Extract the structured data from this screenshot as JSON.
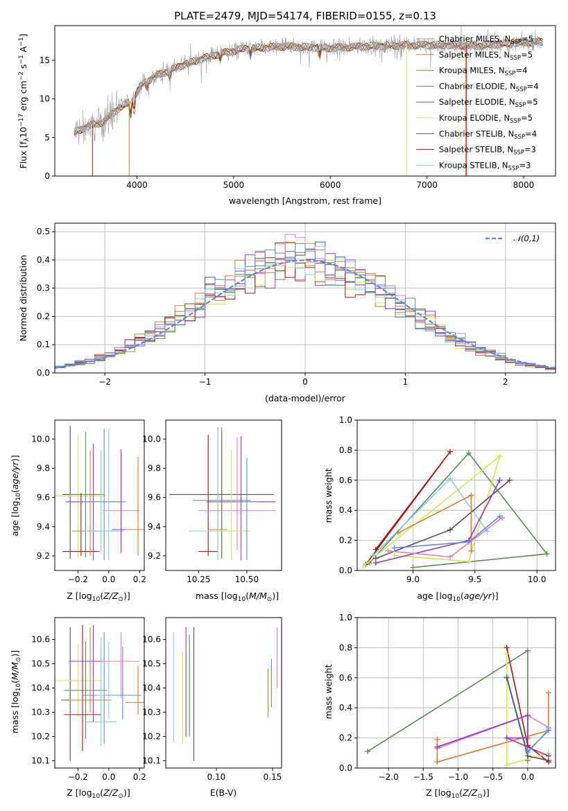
{
  "palette": [
    "#a0a0a0",
    "#e07b25",
    "#b8860b",
    "#5a8a5a",
    "#9932cc",
    "#d6e84a",
    "#505050",
    "#b01010",
    "#80d0e0",
    "#7b8cde",
    "#e080c0"
  ],
  "chart_data": [
    {
      "id": "spectrum",
      "type": "line",
      "title": "PLATE=2479, MJD=54174, FIBERID=0155, z=0.13",
      "xlabel": "wavelength [Angstrom, rest frame]",
      "ylabel": "Flux [f_λ10^-17 erg cm^-2 s^-1 A^-1]",
      "xlim": [
        3150,
        8330
      ],
      "ylim": [
        0,
        19.5
      ],
      "xticks": [
        4000,
        5000,
        6000,
        7000,
        8000
      ],
      "yticks": [
        0,
        5,
        10,
        15
      ],
      "grid": false,
      "legend_position": "top-right",
      "continuum": [
        [
          3350,
          5.6
        ],
        [
          3500,
          6.5
        ],
        [
          3650,
          7.0
        ],
        [
          3800,
          8.7
        ],
        [
          3950,
          9.8
        ],
        [
          4050,
          11.9
        ],
        [
          4200,
          13.0
        ],
        [
          4500,
          14.5
        ],
        [
          4800,
          15.7
        ],
        [
          5100,
          16.5
        ],
        [
          5500,
          16.8
        ],
        [
          6000,
          16.6
        ],
        [
          6500,
          16.9
        ],
        [
          7000,
          17.0
        ],
        [
          7500,
          16.9
        ],
        [
          8000,
          17.3
        ],
        [
          8200,
          17.4
        ]
      ],
      "series": [
        {
          "name": "Chabrier MILES, N_SSP=5",
          "color": "#a0a0a0"
        },
        {
          "name": "Salpeter MILES, N_SSP=5",
          "color": "#e07b25"
        },
        {
          "name": "Kroupa MILES, N_SSP=4",
          "color": "#b8860b"
        },
        {
          "name": "Chabrier ELODIE, N_SSP=4",
          "color": "#5a8a5a"
        },
        {
          "name": "Salpeter ELODIE, N_SSP=5",
          "color": "#9932cc"
        },
        {
          "name": "Kroupa ELODIE, N_SSP=5",
          "color": "#d6e84a"
        },
        {
          "name": "Chabrier STELIB, N_SSP=4",
          "color": "#505050"
        },
        {
          "name": "Salpeter STELIB, N_SSP=3",
          "color": "#b01010"
        },
        {
          "name": "Kroupa STELIB, N_SSP=3",
          "color": "#80d0e0"
        }
      ]
    },
    {
      "id": "residuals",
      "type": "line",
      "xlabel": "(data-model)/error",
      "ylabel": "Normed distribution",
      "xlim": [
        -2.5,
        2.5
      ],
      "ylim": [
        0,
        0.53
      ],
      "xticks": [
        -2,
        -1,
        0,
        1,
        2
      ],
      "yticks": [
        0.0,
        0.1,
        0.2,
        0.3,
        0.4,
        0.5
      ],
      "grid": true,
      "legend_position": "top-right",
      "legend_label": "𝒩(0,1)",
      "gaussian": {
        "mean": 0,
        "sigma": 1,
        "color": "#5b8bd6"
      },
      "bin_width": 0.1
    },
    {
      "id": "age_vs_Z",
      "type": "scatter",
      "xlabel": "Z [log10(Z/Z⊙)]",
      "ylabel": "age  [log10(age/yr)]",
      "xlim": [
        -0.35,
        0.23
      ],
      "ylim": [
        9.1,
        10.13
      ],
      "xticks": [
        -0.2,
        0.0,
        0.2
      ],
      "yticks": [
        9.2,
        9.4,
        9.6,
        9.8,
        10.0
      ],
      "grid": false,
      "points": [
        {
          "x": -0.25,
          "xerr": 0.05,
          "y": 9.62,
          "yerr": [
            0.44,
            0.47
          ],
          "color": "#505050"
        },
        {
          "x": -0.2,
          "xerr": 0.18,
          "y": 9.61,
          "yerr": [
            0.42,
            0.42
          ],
          "color": "#d6e84a"
        },
        {
          "x": -0.15,
          "xerr": 0.12,
          "y": 9.62,
          "yerr": [
            0.43,
            0.43
          ],
          "color": "#5a8a5a"
        },
        {
          "x": -0.18,
          "xerr": 0.12,
          "y": 9.23,
          "yerr": [
            0.03,
            0.4
          ],
          "color": "#b01010"
        },
        {
          "x": -0.1,
          "xerr": 0.18,
          "y": 9.57,
          "yerr": [
            0.4,
            0.4
          ],
          "color": "#9932cc"
        },
        {
          "x": -0.12,
          "xerr": 0.12,
          "y": 9.37,
          "yerr": [
            0.17,
            0.55
          ],
          "color": "#e07b25"
        },
        {
          "x": -0.03,
          "xerr": 0.14,
          "y": 9.57,
          "yerr": [
            0.4,
            0.5
          ],
          "color": "#5b8bd6"
        },
        {
          "x": -0.05,
          "xerr": 0.12,
          "y": 9.37,
          "yerr": [
            0.15,
            0.55
          ],
          "color": "#80d0e0"
        },
        {
          "x": 0.0,
          "xerr": 0.1,
          "y": 9.37,
          "yerr": [
            0.2,
            0.7
          ],
          "color": "#80d0e0"
        },
        {
          "x": 0.08,
          "xerr": 0.12,
          "y": 9.51,
          "yerr": [
            0.27,
            0.4
          ],
          "color": "#e080c0"
        },
        {
          "x": 0.08,
          "xerr": 0.06,
          "y": 9.38,
          "yerr": [
            0.16,
            0.55
          ],
          "color": "#9932cc"
        },
        {
          "x": 0.19,
          "xerr": 0.08,
          "y": 9.38,
          "yerr": [
            0.18,
            0.5
          ],
          "color": "#e07b25"
        }
      ]
    },
    {
      "id": "age_vs_mass",
      "type": "scatter",
      "xlabel": "mass [log10(M/M⊙)]",
      "ylabel": "",
      "xlim": [
        10.08,
        10.68
      ],
      "ylim": [
        9.1,
        10.13
      ],
      "xticks": [
        10.25,
        10.5
      ],
      "yticks": [
        9.2,
        9.4,
        9.6,
        9.8,
        10.0
      ],
      "grid": false,
      "points": [
        {
          "x": 10.37,
          "xerr": 0.27,
          "y": 9.62,
          "yerr": [
            0.43,
            0.43
          ],
          "color": "#505050"
        },
        {
          "x": 10.37,
          "xerr": 0.15,
          "y": 9.58,
          "yerr": [
            0.4,
            0.5
          ],
          "color": "#5a8a5a"
        },
        {
          "x": 10.3,
          "xerr": 0.05,
          "y": 9.23,
          "yerr": [
            0.03,
            0.8
          ],
          "color": "#b01010"
        },
        {
          "x": 10.47,
          "xerr": 0.18,
          "y": 9.57,
          "yerr": [
            0.4,
            0.45
          ],
          "color": "#9932cc"
        },
        {
          "x": 10.35,
          "xerr": 0.05,
          "y": 9.38,
          "yerr": [
            0.1,
            0.7
          ],
          "color": "#e07b25"
        },
        {
          "x": 10.35,
          "xerr": 0.15,
          "y": 9.37,
          "yerr": [
            0.2,
            0.7
          ],
          "color": "#80d0e0"
        },
        {
          "x": 10.45,
          "xerr": 0.2,
          "y": 9.51,
          "yerr": [
            0.27,
            0.5
          ],
          "color": "#e080c0"
        },
        {
          "x": 10.42,
          "xerr": 0.1,
          "y": 9.37,
          "yerr": [
            0.2,
            0.55
          ],
          "color": "#d6e84a"
        },
        {
          "x": 10.5,
          "xerr": 0.05,
          "y": 9.57,
          "yerr": [
            0.4,
            0.3
          ],
          "color": "#5b8bd6"
        }
      ]
    },
    {
      "id": "weight_vs_age",
      "type": "line",
      "xlabel": "age  [log10(age/yr)]",
      "ylabel": "mass weight",
      "xlim": [
        8.55,
        10.15
      ],
      "ylim": [
        0.0,
        1.0
      ],
      "xticks": [
        9.0,
        9.5,
        10.0
      ],
      "yticks": [
        0.0,
        0.2,
        0.4,
        0.6,
        0.8,
        1.0
      ],
      "grid": true,
      "series": [
        {
          "color": "#b01010",
          "points": [
            [
              8.62,
              0.04
            ],
            [
              9.3,
              0.79
            ],
            [
              8.7,
              0.14
            ]
          ]
        },
        {
          "color": "#5a8a5a",
          "points": [
            [
              8.65,
              0.05
            ],
            [
              9.45,
              0.78
            ],
            [
              10.08,
              0.11
            ],
            [
              9.0,
              0.02
            ]
          ]
        },
        {
          "color": "#d6e84a",
          "points": [
            [
              8.6,
              0.03
            ],
            [
              9.7,
              0.76
            ],
            [
              9.45,
              0.06
            ],
            [
              8.85,
              0.1
            ]
          ]
        },
        {
          "color": "#80d0e0",
          "points": [
            [
              8.68,
              0.1
            ],
            [
              9.3,
              0.61
            ],
            [
              9.6,
              0.26
            ]
          ]
        },
        {
          "color": "#505050",
          "points": [
            [
              8.7,
              0.08
            ],
            [
              9.3,
              0.27
            ],
            [
              9.78,
              0.6
            ]
          ]
        },
        {
          "color": "#e07b25",
          "points": [
            [
              8.88,
              0.25
            ],
            [
              9.47,
              0.5
            ],
            [
              9.47,
              0.13
            ]
          ]
        },
        {
          "color": "#9932cc",
          "points": [
            [
              8.7,
              0.05
            ],
            [
              9.45,
              0.2
            ],
            [
              9.7,
              0.6
            ]
          ]
        },
        {
          "color": "#e080c0",
          "points": [
            [
              8.8,
              0.13
            ],
            [
              9.3,
              0.09
            ],
            [
              9.72,
              0.35
            ]
          ]
        },
        {
          "color": "#5b8bd6",
          "points": [
            [
              8.85,
              0.15
            ],
            [
              9.45,
              0.19
            ],
            [
              9.7,
              0.36
            ]
          ]
        }
      ]
    },
    {
      "id": "mass_vs_Z",
      "type": "scatter",
      "xlabel": "Z [log10(Z/Z⊙)]",
      "ylabel": "mass [log10(M/M⊙)]",
      "xlim": [
        -0.35,
        0.23
      ],
      "ylim": [
        10.07,
        10.69
      ],
      "xticks": [
        -0.2,
        0.0,
        0.2
      ],
      "yticks": [
        10.1,
        10.2,
        10.3,
        10.4,
        10.5,
        10.6
      ],
      "grid": false,
      "points": [
        {
          "x": -0.25,
          "xerr": 0.06,
          "y": 10.35,
          "yerr": [
            0.25,
            0.3
          ],
          "color": "#505050"
        },
        {
          "x": -0.2,
          "xerr": 0.16,
          "y": 10.43,
          "yerr": [
            0.15,
            0.15
          ],
          "color": "#d6e84a"
        },
        {
          "x": -0.15,
          "xerr": 0.14,
          "y": 10.39,
          "yerr": [
            0.2,
            0.2
          ],
          "color": "#5a8a5a"
        },
        {
          "x": -0.17,
          "xerr": 0.12,
          "y": 10.29,
          "yerr": [
            0.15,
            0.37
          ],
          "color": "#b01010"
        },
        {
          "x": -0.1,
          "xerr": 0.16,
          "y": 10.51,
          "yerr": [
            0.25,
            0.15
          ],
          "color": "#9932cc"
        },
        {
          "x": -0.12,
          "xerr": 0.14,
          "y": 10.35,
          "yerr": [
            0.05,
            0.3
          ],
          "color": "#e07b25"
        },
        {
          "x": -0.03,
          "xerr": 0.14,
          "y": 10.37,
          "yerr": [
            0.2,
            0.26
          ],
          "color": "#5b8bd6"
        },
        {
          "x": -0.05,
          "xerr": 0.1,
          "y": 10.26,
          "yerr": [
            0.1,
            0.35
          ],
          "color": "#80d0e0"
        },
        {
          "x": 0.0,
          "xerr": 0.08,
          "y": 10.37,
          "yerr": [
            0.1,
            0.22
          ],
          "color": "#80d0e0"
        },
        {
          "x": 0.08,
          "xerr": 0.12,
          "y": 10.51,
          "yerr": [
            0.15,
            0.12
          ],
          "color": "#e080c0"
        },
        {
          "x": 0.09,
          "xerr": 0.12,
          "y": 10.37,
          "yerr": [
            0.1,
            0.2
          ],
          "color": "#5b8bd6"
        },
        {
          "x": 0.19,
          "xerr": 0.08,
          "y": 10.34,
          "yerr": [
            0.05,
            0.15
          ],
          "color": "#e07b25"
        }
      ]
    },
    {
      "id": "mass_vs_ebv",
      "type": "scatter",
      "xlabel": "E(B-V)",
      "ylabel": "",
      "xlim": [
        0.055,
        0.158
      ],
      "ylim": [
        10.07,
        10.69
      ],
      "xticks": [
        0.1,
        0.15
      ],
      "yticks": [
        10.1,
        10.2,
        10.3,
        10.4,
        10.5,
        10.6
      ],
      "grid": false,
      "points": [
        {
          "x": 0.062,
          "y": 10.43,
          "yerr": [
            0.25,
            0.2
          ],
          "color": "#80d0e0"
        },
        {
          "x": 0.07,
          "y": 10.4,
          "yerr": [
            0.23,
            0.15
          ],
          "color": "#d6e84a"
        },
        {
          "x": 0.073,
          "y": 10.4,
          "yerr": [
            0.2,
            0.25
          ],
          "color": "#9932cc"
        },
        {
          "x": 0.076,
          "y": 10.4,
          "yerr": [
            0.2,
            0.22
          ],
          "color": "#5a8a5a"
        },
        {
          "x": 0.08,
          "y": 10.4,
          "yerr": [
            0.3,
            0.25
          ],
          "color": "#505050"
        },
        {
          "x": 0.146,
          "y": 10.38,
          "yerr": [
            0.1,
            0.1
          ],
          "color": "#e07b25"
        },
        {
          "x": 0.149,
          "y": 10.42,
          "yerr": [
            0.1,
            0.1
          ],
          "color": "#5b8bd6"
        },
        {
          "x": 0.154,
          "y": 10.52,
          "yerr": [
            0.12,
            0.13
          ],
          "color": "#e080c0"
        }
      ]
    },
    {
      "id": "weight_vs_Z",
      "type": "line",
      "xlabel": "Z [log10(Z/Z⊙)]",
      "ylabel": "mass weight",
      "xlim": [
        -2.45,
        0.4
      ],
      "ylim": [
        0.0,
        1.0
      ],
      "xticks": [
        -2.0,
        -1.5,
        -1.0,
        -0.5,
        0.0
      ],
      "yticks": [
        0.0,
        0.2,
        0.4,
        0.6,
        0.8,
        1.0
      ],
      "grid": true,
      "series": [
        {
          "color": "#5a8a5a",
          "points": [
            [
              -2.3,
              0.11
            ],
            [
              0.0,
              0.78
            ],
            [
              0.0,
              0.05
            ]
          ]
        },
        {
          "color": "#b01010",
          "points": [
            [
              -0.3,
              0.8
            ],
            [
              0.0,
              0.15
            ],
            [
              0.3,
              0.04
            ]
          ]
        },
        {
          "color": "#d6e84a",
          "points": [
            [
              -0.3,
              0.76
            ],
            [
              -0.3,
              0.02
            ],
            [
              0.3,
              0.1
            ]
          ]
        },
        {
          "color": "#e07b25",
          "points": [
            [
              -1.3,
              0.19
            ],
            [
              -1.3,
              0.04
            ],
            [
              0.3,
              0.25
            ],
            [
              0.3,
              0.5
            ]
          ]
        },
        {
          "color": "#80d0e0",
          "points": [
            [
              -0.3,
              0.61
            ],
            [
              0.0,
              0.1
            ],
            [
              0.3,
              0.26
            ]
          ]
        },
        {
          "color": "#505050",
          "points": [
            [
              -0.3,
              0.6
            ],
            [
              0.0,
              0.08
            ],
            [
              0.3,
              0.05
            ]
          ]
        },
        {
          "color": "#e080c0",
          "points": [
            [
              -1.3,
              0.13
            ],
            [
              0.0,
              0.35
            ],
            [
              0.3,
              0.27
            ]
          ]
        },
        {
          "color": "#9932cc",
          "points": [
            [
              -1.3,
              0.14
            ],
            [
              0.0,
              0.35
            ],
            [
              0.0,
              0.2
            ],
            [
              -0.3,
              0.2
            ],
            [
              0.3,
              0.08
            ]
          ]
        },
        {
          "color": "#5b8bd6",
          "points": [
            [
              0.0,
              0.11
            ],
            [
              0.3,
              0.25
            ]
          ]
        }
      ]
    }
  ]
}
